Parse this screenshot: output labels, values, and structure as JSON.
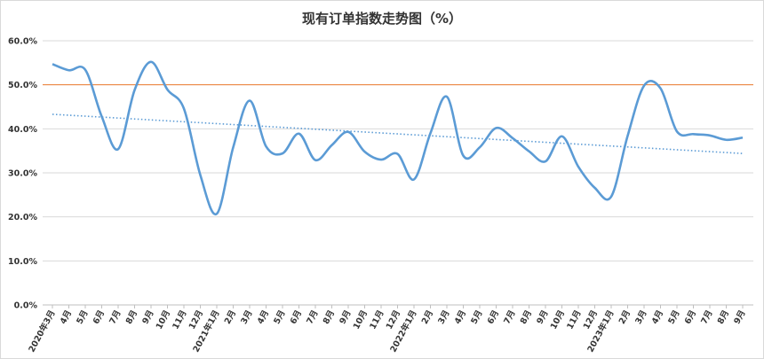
{
  "chart_data": {
    "type": "line",
    "title": "现有订单指数走势图（%）",
    "xlabel": "",
    "ylabel": "",
    "ylim": [
      0,
      60
    ],
    "ytick_labels": [
      "0.0%",
      "10.0%",
      "20.0%",
      "30.0%",
      "40.0%",
      "50.0%",
      "60.0%"
    ],
    "categories": [
      "2020年3月",
      "4月",
      "5月",
      "6月",
      "7月",
      "8月",
      "9月",
      "10月",
      "11月",
      "12月",
      "2021年1月",
      "2月",
      "3月",
      "4月",
      "5月",
      "6月",
      "7月",
      "8月",
      "9月",
      "10月",
      "11月",
      "12月",
      "2022年1月",
      "2月",
      "3月",
      "4月",
      "5月",
      "6月",
      "7月",
      "8月",
      "9月",
      "10月",
      "11月",
      "12月",
      "2023年1月",
      "2月",
      "3月",
      "4月",
      "5月",
      "6月",
      "7月",
      "8月",
      "9月"
    ],
    "series": [
      {
        "name": "",
        "color": "#5b9bd5",
        "values": [
          54.7,
          53.3,
          53.4,
          42.8,
          35.4,
          48.8,
          55.2,
          48.9,
          44.6,
          29.5,
          20.7,
          35.8,
          46.4,
          36.0,
          34.4,
          38.9,
          32.9,
          36.3,
          39.3,
          34.8,
          33.0,
          34.3,
          28.5,
          39.0,
          47.3,
          33.9,
          35.8,
          40.2,
          37.9,
          34.9,
          32.6,
          38.3,
          31.4,
          26.6,
          24.6,
          38.4,
          49.8,
          49.2,
          39.4,
          38.8,
          38.5,
          37.5,
          38.0
        ]
      }
    ],
    "reference_line": {
      "value": 50,
      "color": "#ed7d31"
    },
    "trendline": {
      "start": 43.3,
      "end": 34.4,
      "color": "#5b9bd5",
      "style": "dotted"
    },
    "grid": true,
    "legend": "none"
  }
}
